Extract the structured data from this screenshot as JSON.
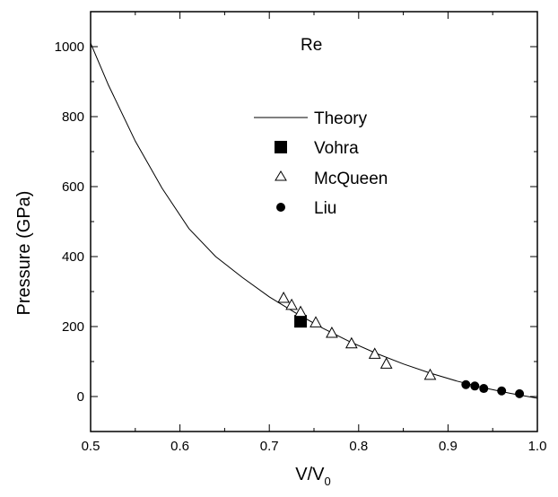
{
  "chart_data": {
    "type": "scatter",
    "annotation": "Re",
    "xlabel": {
      "main": "V/V",
      "sub": "0"
    },
    "ylabel": "Pressure (GPa)",
    "xlim": [
      0.5,
      1.0
    ],
    "ylim": [
      -100,
      1100
    ],
    "x_ticks": [
      0.5,
      0.6,
      0.7,
      0.8,
      0.9,
      1.0
    ],
    "x_tick_labels": [
      "0.5",
      "0.6",
      "0.7",
      "0.8",
      "0.9",
      "1.0"
    ],
    "y_ticks": [
      0,
      200,
      400,
      600,
      800,
      1000
    ],
    "y_tick_labels": [
      "0",
      "200",
      "400",
      "600",
      "800",
      "1000"
    ],
    "grid": false,
    "legend_position": "center",
    "series": [
      {
        "name": "Theory",
        "style": "line",
        "color": "#000000",
        "x": [
          0.5,
          0.52,
          0.55,
          0.58,
          0.61,
          0.64,
          0.67,
          0.7,
          0.73,
          0.76,
          0.79,
          0.82,
          0.85,
          0.88,
          0.91,
          0.94,
          0.97,
          1.0
        ],
        "y": [
          1010,
          890,
          730,
          595,
          480,
          400,
          340,
          285,
          238,
          195,
          157,
          123,
          93,
          67,
          44,
          25,
          9,
          -5
        ]
      },
      {
        "name": "Vohra",
        "style": "filled-square",
        "color": "#000000",
        "x": [
          0.735
        ],
        "y": [
          215
        ]
      },
      {
        "name": "McQueen",
        "style": "open-triangle",
        "color": "#000000",
        "x": [
          0.716,
          0.725,
          0.735,
          0.752,
          0.77,
          0.792,
          0.818,
          0.831,
          0.88
        ],
        "y": [
          282,
          262,
          242,
          212,
          182,
          152,
          122,
          94,
          62
        ]
      },
      {
        "name": "Liu",
        "style": "filled-circle",
        "color": "#000000",
        "x": [
          0.92,
          0.93,
          0.94,
          0.96,
          0.98
        ],
        "y": [
          34,
          30,
          23,
          16,
          8
        ]
      }
    ]
  }
}
